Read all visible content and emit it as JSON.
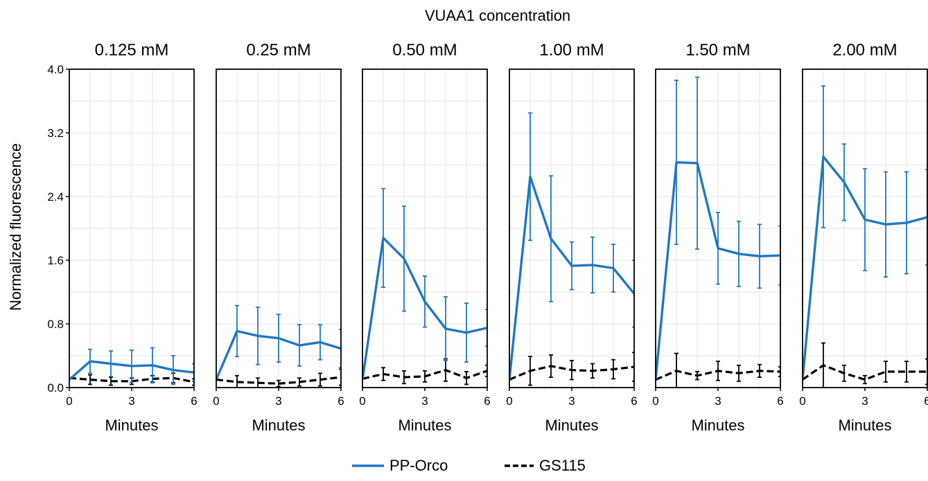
{
  "chart_data": {
    "type": "line",
    "title": "VUAA1 concentration",
    "ylabel": "Normalized fluorescence",
    "xlabel": "Minutes",
    "xlim": [
      0,
      6
    ],
    "ylim": [
      0,
      4.0
    ],
    "x_ticks": [
      0,
      3,
      6
    ],
    "y_ticks": [
      0.0,
      0.8,
      1.6,
      2.4,
      3.2,
      4.0
    ],
    "y_tick_labels": [
      "0.0",
      "0.8",
      "1.6",
      "2.4",
      "3.2",
      "4.0"
    ],
    "grid": true,
    "legend_position": "bottom-center",
    "x": [
      0,
      1,
      2,
      3,
      4,
      5,
      6
    ],
    "series_meta": [
      {
        "name": "PP-Orco",
        "color": "#1f77c4",
        "dash": "solid"
      },
      {
        "name": "GS115",
        "color": "#000000",
        "dash": "dashed"
      }
    ],
    "panels": [
      {
        "title": "0.125 mM",
        "series": [
          {
            "name": "PP-Orco",
            "values": [
              0.1,
              0.33,
              0.3,
              0.27,
              0.28,
              0.22,
              0.19
            ],
            "errors": [
              0,
              0.15,
              0.16,
              0.2,
              0.22,
              0.18,
              0.11
            ]
          },
          {
            "name": "GS115",
            "values": [
              0.12,
              0.1,
              0.08,
              0.08,
              0.11,
              0.12,
              0.07
            ],
            "errors": [
              0,
              0.06,
              0.05,
              0.04,
              0.04,
              0.06,
              0.04
            ]
          }
        ]
      },
      {
        "title": "0.25 mM",
        "series": [
          {
            "name": "PP-Orco",
            "values": [
              0.1,
              0.71,
              0.65,
              0.62,
              0.53,
              0.57,
              0.49
            ],
            "errors": [
              0,
              0.32,
              0.36,
              0.3,
              0.26,
              0.22,
              0.24
            ]
          },
          {
            "name": "GS115",
            "values": [
              0.1,
              0.07,
              0.06,
              0.05,
              0.07,
              0.1,
              0.13
            ],
            "errors": [
              0,
              0.08,
              0.06,
              0.04,
              0.05,
              0.08,
              0.1
            ]
          }
        ]
      },
      {
        "title": "0.50 mM",
        "series": [
          {
            "name": "PP-Orco",
            "values": [
              0.1,
              1.88,
              1.62,
              1.08,
              0.74,
              0.69,
              0.75
            ],
            "errors": [
              0,
              0.62,
              0.66,
              0.32,
              0.4,
              0.37,
              0.23
            ]
          },
          {
            "name": "GS115",
            "values": [
              0.11,
              0.17,
              0.13,
              0.14,
              0.22,
              0.12,
              0.21
            ],
            "errors": [
              0,
              0.08,
              0.08,
              0.07,
              0.14,
              0.08,
              0.07
            ]
          }
        ]
      },
      {
        "title": "1.00 mM",
        "series": [
          {
            "name": "PP-Orco",
            "values": [
              0.1,
              2.65,
              1.87,
              1.53,
              1.54,
              1.5,
              1.18
            ],
            "errors": [
              0,
              0.8,
              0.79,
              0.3,
              0.35,
              0.3,
              0.42
            ]
          },
          {
            "name": "GS115",
            "values": [
              0.1,
              0.21,
              0.27,
              0.22,
              0.21,
              0.23,
              0.26
            ],
            "errors": [
              0,
              0.18,
              0.14,
              0.12,
              0.09,
              0.12,
              0.18
            ]
          }
        ]
      },
      {
        "title": "1.50 mM",
        "series": [
          {
            "name": "PP-Orco",
            "values": [
              0.1,
              2.83,
              2.82,
              1.75,
              1.68,
              1.65,
              1.66
            ],
            "errors": [
              0,
              1.03,
              1.08,
              0.45,
              0.41,
              0.4,
              0.37
            ]
          },
          {
            "name": "GS115",
            "values": [
              0.1,
              0.21,
              0.15,
              0.21,
              0.18,
              0.21,
              0.2
            ],
            "errors": [
              0,
              0.22,
              0.05,
              0.12,
              0.1,
              0.08,
              0.06
            ]
          }
        ]
      },
      {
        "title": "2.00 mM",
        "series": [
          {
            "name": "PP-Orco",
            "values": [
              0.1,
              2.9,
              2.58,
              2.11,
              2.05,
              2.07,
              2.14
            ],
            "errors": [
              0,
              0.89,
              0.48,
              0.64,
              0.66,
              0.64,
              0.6
            ]
          },
          {
            "name": "GS115",
            "values": [
              0.1,
              0.28,
              0.18,
              0.1,
              0.2,
              0.2,
              0.2
            ],
            "errors": [
              0,
              0.28,
              0.1,
              0.05,
              0.13,
              0.13,
              0.16
            ]
          }
        ]
      }
    ]
  }
}
